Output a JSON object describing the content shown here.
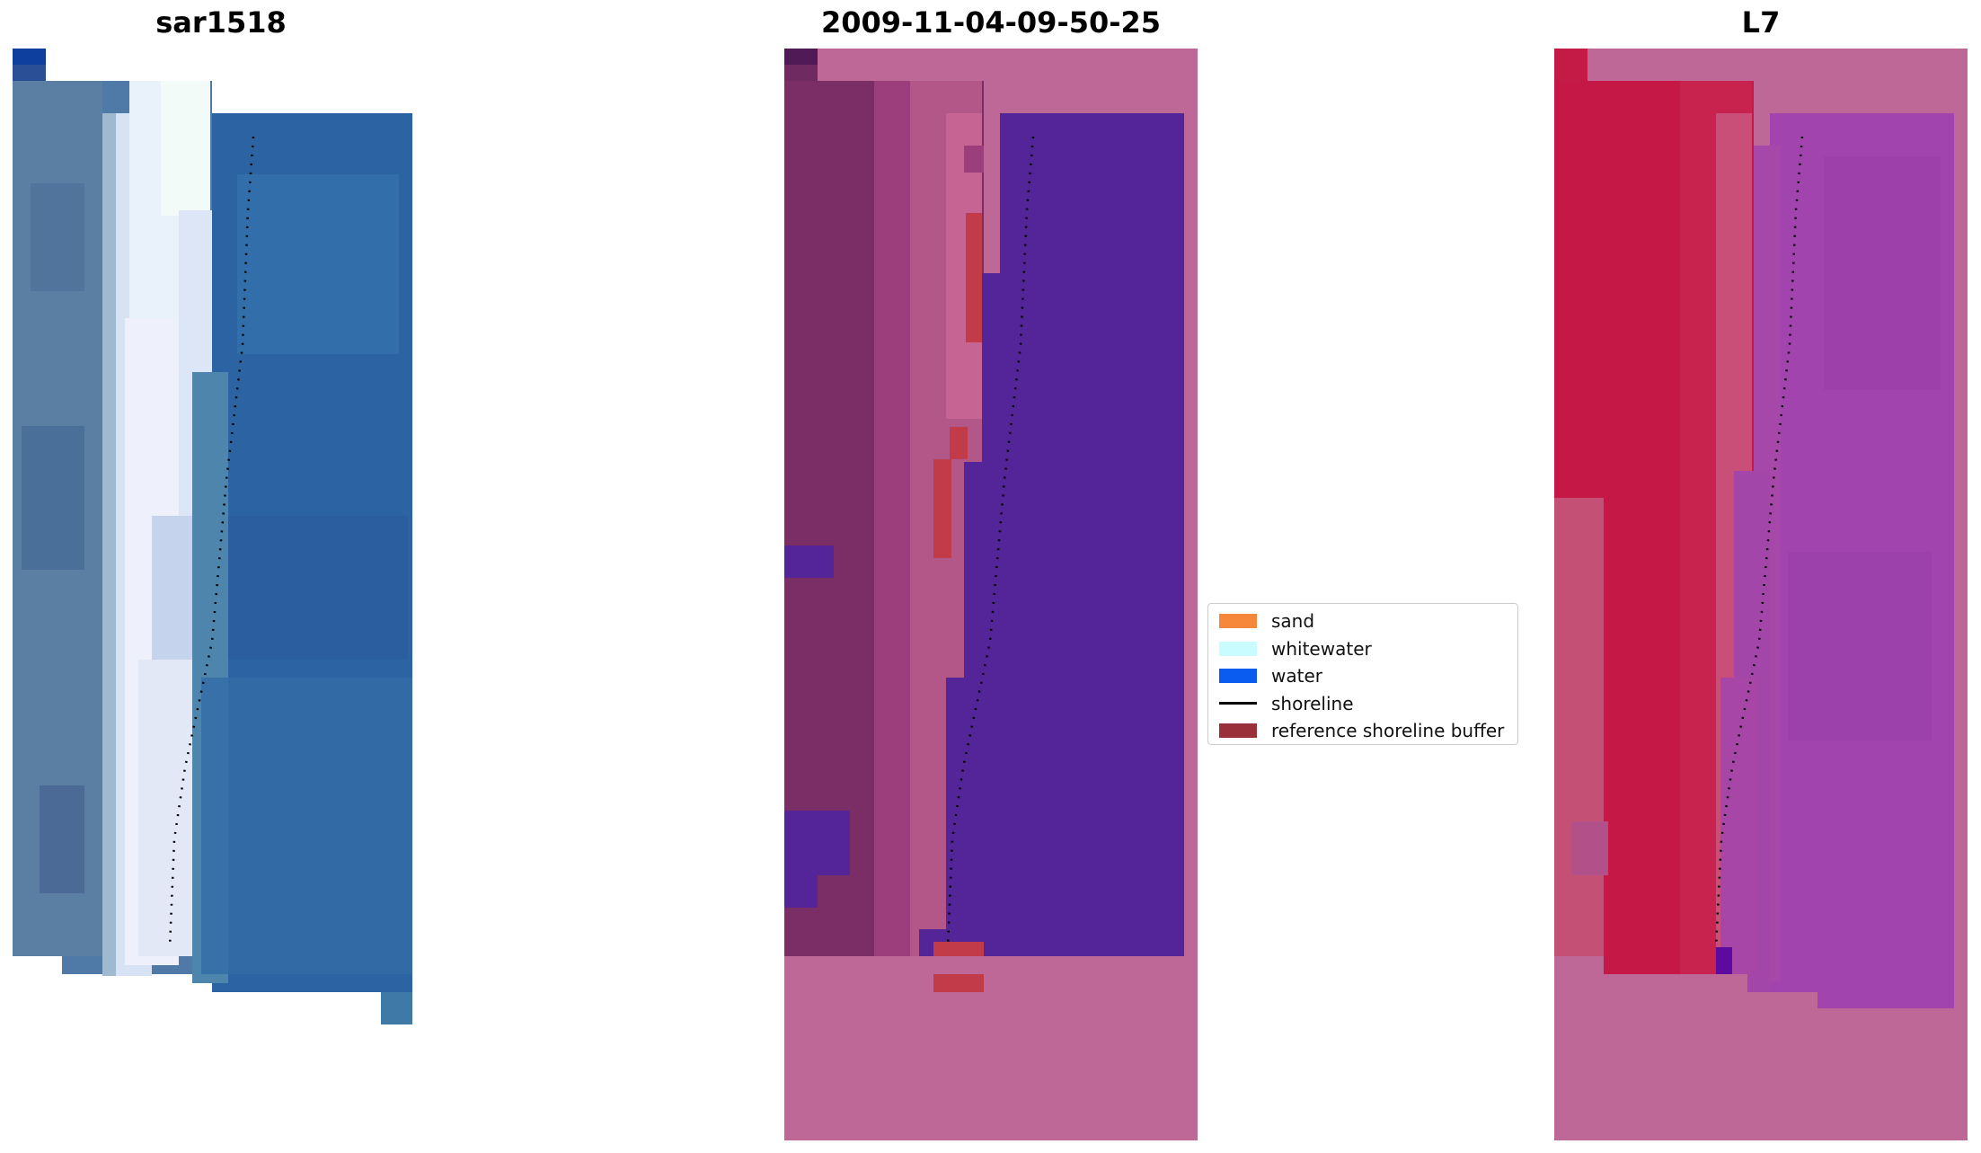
{
  "panels": [
    {
      "title": "sar1518"
    },
    {
      "title": "2009-11-04-09-50-25"
    },
    {
      "title": "L7"
    }
  ],
  "legend": {
    "items": [
      {
        "label": "sand",
        "color": "#f5883a",
        "kind": "patch"
      },
      {
        "label": "whitewater",
        "color": "#c8fcff",
        "kind": "patch"
      },
      {
        "label": "water",
        "color": "#0a5cf0",
        "kind": "patch"
      },
      {
        "label": "shoreline",
        "color": "#000000",
        "kind": "line"
      },
      {
        "label": "reference shoreline buffer",
        "color": "#99303a",
        "kind": "patch"
      }
    ]
  },
  "colors": {
    "no_data_pink": "#bd6897",
    "classified_water": "#542499",
    "buffer_red": "#c23b48",
    "land_magenta": "#7a2d66",
    "l7_red": "#c61847",
    "l7_purple": "#a144ad",
    "rgb_blue": "#2e66a6",
    "rgb_white": "#e8eefb"
  }
}
